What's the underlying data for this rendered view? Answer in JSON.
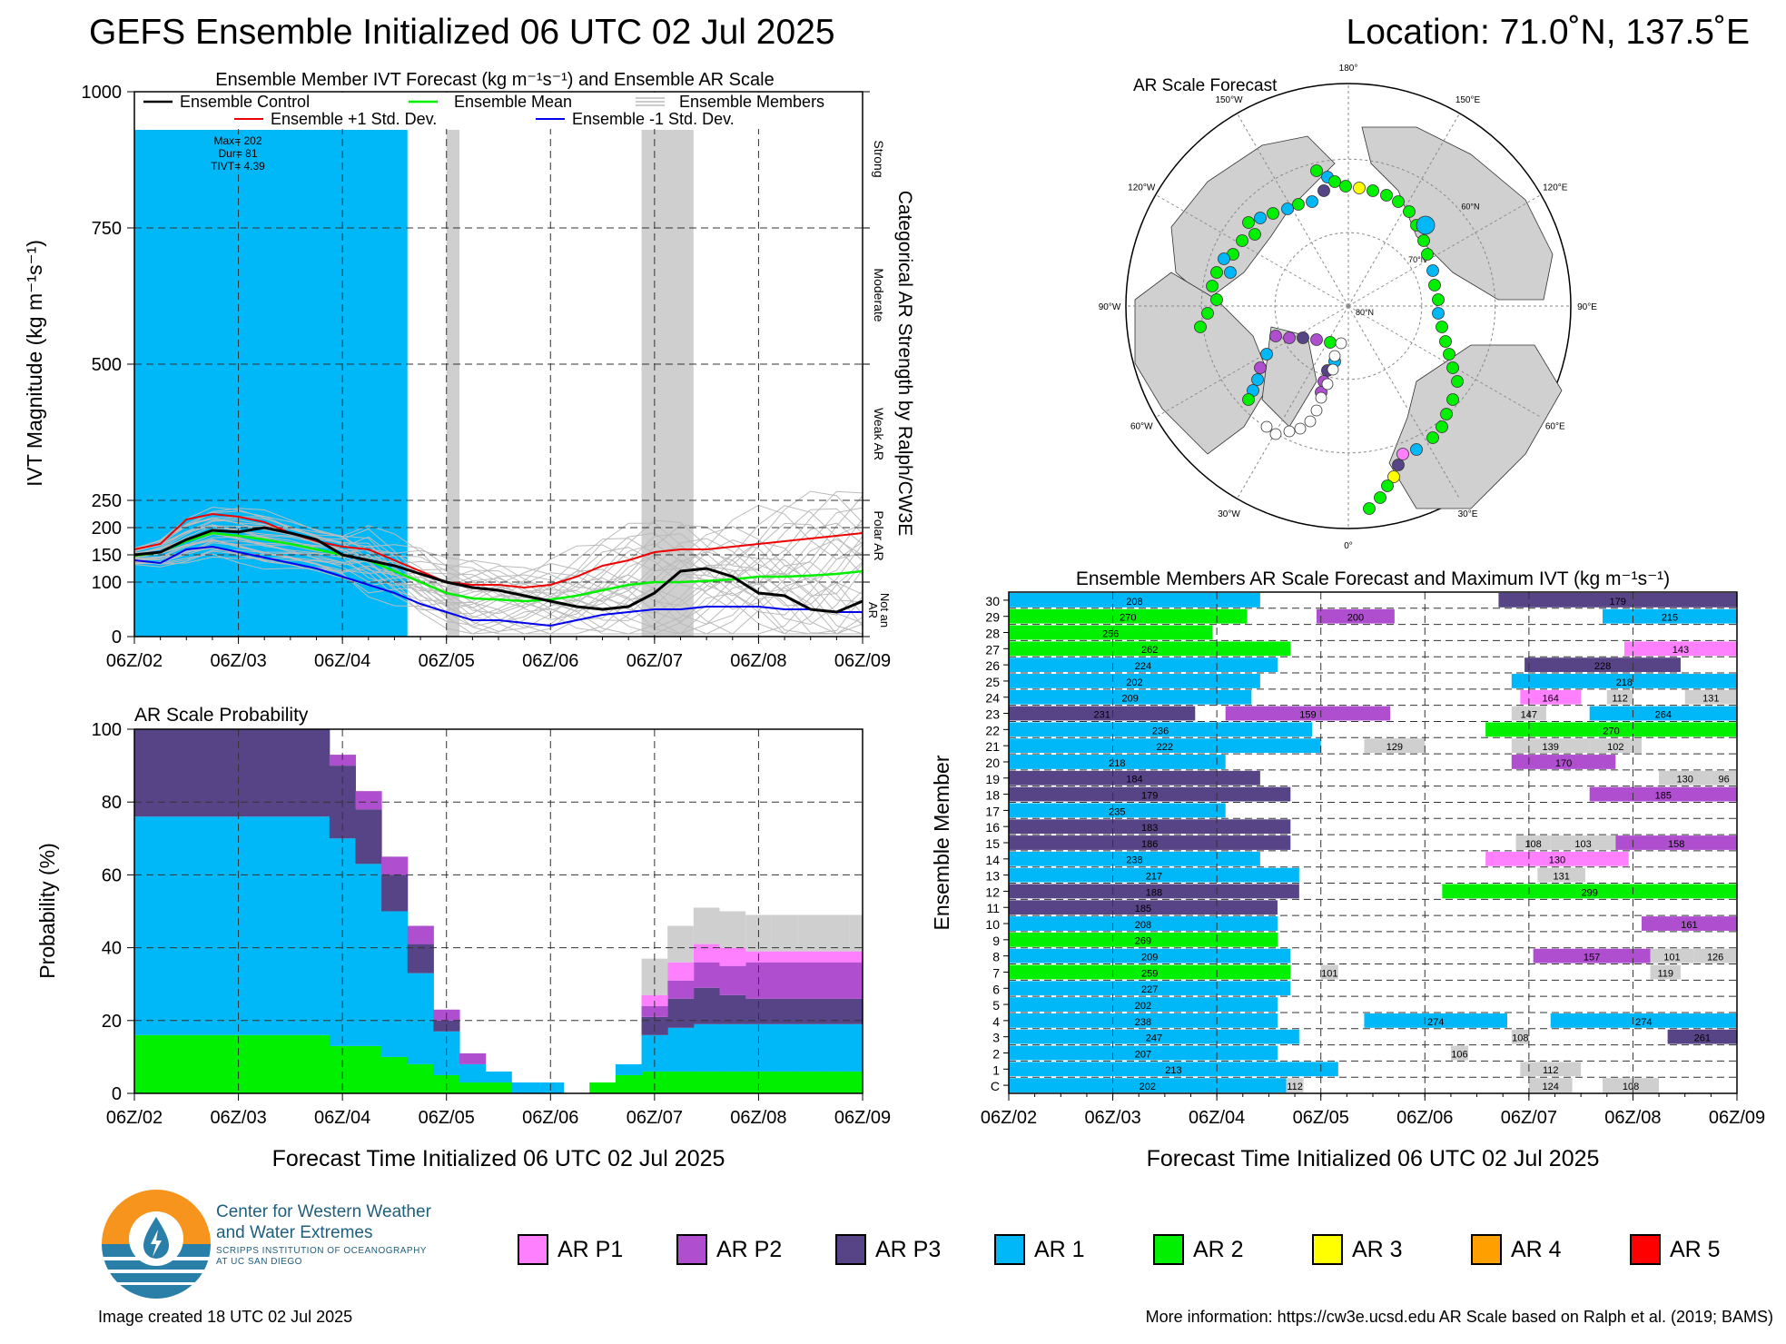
{
  "title": "GEFS Ensemble Initialized 06 UTC 02 Jul 2025",
  "location": "Location: 71.0˚N, 137.5˚E",
  "x_ticks": [
    "06Z/02",
    "06Z/03",
    "06Z/04",
    "06Z/05",
    "06Z/06",
    "06Z/07",
    "06Z/08",
    "06Z/09"
  ],
  "x_label": "Forecast Time Initialized 06 UTC 02 Jul 2025",
  "colors": {
    "AR P1": "#ff80ff",
    "AR P2": "#b04ed0",
    "AR P3": "#574486",
    "AR 1": "#00b8f8",
    "AR 2": "#00f000",
    "AR 3": "#ffff00",
    "AR 4": "#ffa000",
    "AR 5": "#ff0000",
    "members": "#bbbbbb",
    "shade": "#cfcfcf"
  },
  "ivt_panel": {
    "title": "Ensemble Member IVT Forecast (kg m⁻¹s⁻¹) and Ensemble AR Scale",
    "ylabel": "IVT Magnitude (kg m⁻¹s⁻¹)",
    "right_label": "Categorical AR Strength by Ralph/CW3E",
    "legend": {
      "control": "Ensemble Control",
      "mean": "Ensemble Mean",
      "members": "Ensemble Members",
      "plus": "Ensemble +1 Std. Dev.",
      "minus": "Ensemble -1 Std. Dev."
    },
    "annotation": [
      "Max= 202",
      "Dur= 81",
      "TIVT= 4.39"
    ],
    "categories": [
      "Strong",
      "Moderate",
      "Weak AR",
      "Polar AR",
      "Not an AR"
    ]
  },
  "prob_panel": {
    "title": "AR Scale Probability",
    "ylabel": "Probability (%)"
  },
  "map_panel": {
    "title": "AR Scale Forecast",
    "lon_labels": [
      "180°",
      "150°E",
      "120°E",
      "90°E",
      "60°E",
      "30°E",
      "0°",
      "30°W",
      "60°W",
      "90°W",
      "120°W",
      "150°W"
    ],
    "lat_labels": [
      "60°N",
      "70°N",
      "80°N"
    ]
  },
  "members_panel": {
    "title": "Ensemble Members AR Scale Forecast and Maximum IVT (kg m⁻¹s⁻¹)",
    "ylabel": "Ensemble Member",
    "rows": [
      "C",
      "1",
      "2",
      "3",
      "4",
      "5",
      "6",
      "7",
      "8",
      "9",
      "10",
      "11",
      "12",
      "13",
      "14",
      "15",
      "16",
      "17",
      "18",
      "19",
      "20",
      "21",
      "22",
      "23",
      "24",
      "25",
      "26",
      "27",
      "28",
      "29",
      "30"
    ]
  },
  "legend": {
    "items": [
      "AR P1",
      "AR P2",
      "AR P3",
      "AR 1",
      "AR 2",
      "AR 3",
      "AR 4",
      "AR 5"
    ]
  },
  "logo": {
    "line1": "Center for Western Weather",
    "line2": "and Water Extremes",
    "line3": "SCRIPPS INSTITUTION OF OCEANOGRAPHY",
    "line4": "AT UC SAN DIEGO"
  },
  "footer": {
    "created": "Image created 18 UTC 02 Jul 2025",
    "more": "More information: https://cw3e.ucsd.edu AR Scale based on Ralph et al. (2019; BAMS)"
  },
  "chart_data": [
    {
      "type": "line",
      "title": "Ensemble Member IVT Forecast (kg m⁻¹s⁻¹) and Ensemble AR Scale",
      "ylabel": "IVT Magnitude (kg m⁻¹s⁻¹)",
      "ylim": [
        0,
        1000
      ],
      "yticks": [
        0,
        100,
        150,
        200,
        250,
        500,
        750,
        1000
      ],
      "x_hours": [
        0,
        6,
        12,
        18,
        24,
        30,
        36,
        42,
        48,
        54,
        60,
        66,
        72,
        78,
        84,
        90,
        96,
        102,
        108,
        114,
        120,
        126,
        132,
        138,
        144,
        150,
        156,
        162,
        168
      ],
      "series": [
        {
          "name": "Ensemble Control",
          "values": [
            150,
            155,
            178,
            195,
            192,
            200,
            190,
            178,
            150,
            140,
            130,
            115,
            100,
            90,
            85,
            75,
            65,
            55,
            50,
            55,
            80,
            120,
            125,
            110,
            80,
            75,
            50,
            45,
            65
          ]
        },
        {
          "name": "Ensemble Mean",
          "values": [
            148,
            155,
            175,
            190,
            185,
            178,
            170,
            160,
            150,
            140,
            120,
            100,
            80,
            70,
            68,
            65,
            68,
            75,
            85,
            95,
            100,
            100,
            102,
            105,
            110,
            110,
            112,
            115,
            120
          ]
        },
        {
          "name": "Ensemble +1 Std. Dev.",
          "values": [
            160,
            170,
            215,
            225,
            220,
            210,
            190,
            175,
            165,
            160,
            140,
            120,
            100,
            95,
            95,
            90,
            95,
            110,
            130,
            140,
            155,
            160,
            160,
            165,
            170,
            175,
            180,
            185,
            190
          ]
        },
        {
          "name": "Ensemble -1 Std. Dev.",
          "values": [
            140,
            135,
            160,
            165,
            155,
            145,
            135,
            125,
            110,
            95,
            80,
            60,
            45,
            30,
            30,
            25,
            20,
            30,
            40,
            45,
            50,
            50,
            55,
            55,
            55,
            50,
            50,
            45,
            45
          ]
        }
      ],
      "ar_scale_bars": [
        {
          "category": "AR 1",
          "start_hour": 0,
          "end_hour": 63,
          "top": 930
        },
        {
          "category": "shade",
          "start_hour": 72,
          "end_hour": 75,
          "top": 930
        },
        {
          "category": "shade",
          "start_hour": 117,
          "end_hour": 129,
          "top": 930
        }
      ]
    },
    {
      "type": "area",
      "title": "AR Scale Probability",
      "ylabel": "Probability (%)",
      "ylim": [
        0,
        100
      ],
      "x_hours": [
        0,
        6,
        12,
        18,
        24,
        30,
        36,
        42,
        48,
        54,
        60,
        66,
        72,
        78,
        84,
        90,
        96,
        102,
        108,
        114,
        120,
        126,
        132,
        138,
        144,
        150,
        156,
        162,
        168
      ],
      "series": [
        {
          "name": "AR 2",
          "values": [
            16,
            16,
            16,
            16,
            16,
            16,
            16,
            16,
            13,
            13,
            10,
            8,
            5,
            3,
            3,
            0,
            0,
            0,
            3,
            5,
            6,
            6,
            6,
            6,
            6,
            6,
            6,
            6,
            6
          ]
        },
        {
          "name": "AR 1",
          "values": [
            60,
            60,
            60,
            60,
            60,
            60,
            60,
            60,
            57,
            50,
            40,
            25,
            12,
            5,
            3,
            3,
            3,
            0,
            0,
            3,
            10,
            12,
            13,
            13,
            13,
            13,
            13,
            13,
            13
          ]
        },
        {
          "name": "AR P3",
          "values": [
            24,
            24,
            24,
            24,
            24,
            24,
            24,
            24,
            20,
            15,
            10,
            8,
            3,
            0,
            0,
            0,
            0,
            0,
            0,
            0,
            5,
            8,
            10,
            8,
            7,
            7,
            7,
            7,
            7
          ]
        },
        {
          "name": "AR P2",
          "values": [
            0,
            0,
            0,
            0,
            0,
            0,
            0,
            0,
            3,
            5,
            5,
            5,
            3,
            3,
            0,
            0,
            0,
            0,
            0,
            0,
            3,
            5,
            7,
            8,
            10,
            10,
            10,
            10,
            10
          ]
        },
        {
          "name": "AR P1",
          "values": [
            0,
            0,
            0,
            0,
            0,
            0,
            0,
            0,
            0,
            0,
            0,
            0,
            0,
            0,
            0,
            0,
            0,
            0,
            0,
            0,
            3,
            5,
            5,
            5,
            3,
            3,
            3,
            3,
            3
          ]
        }
      ]
    },
    {
      "type": "heatmap",
      "title": "Ensemble Members AR Scale Forecast and Maximum IVT (kg m⁻¹s⁻¹)",
      "ylabel": "Ensemble Member",
      "xlim_hours": [
        0,
        168
      ],
      "members": [
        {
          "id": "C",
          "segments": [
            [
              "AR 1",
              0,
              64,
              "202"
            ],
            [
              "shade",
              64,
              68,
              "112"
            ],
            [
              "shade",
              120,
              130,
              "124"
            ],
            [
              "shade",
              137,
              150,
              "108"
            ]
          ]
        },
        {
          "id": "1",
          "segments": [
            [
              "AR 1",
              0,
              76,
              "213"
            ],
            [
              "shade",
              118,
              132,
              "112"
            ]
          ]
        },
        {
          "id": "2",
          "segments": [
            [
              "AR 1",
              0,
              62,
              "207"
            ],
            [
              "shade",
              102,
              106,
              "106"
            ]
          ]
        },
        {
          "id": "3",
          "segments": [
            [
              "AR 1",
              0,
              67,
              "247"
            ],
            [
              "shade",
              116,
              120,
              "108"
            ],
            [
              "AR P3",
              152,
              168,
              "261"
            ]
          ]
        },
        {
          "id": "4",
          "segments": [
            [
              "AR 1",
              0,
              62,
              "238"
            ],
            [
              "AR 1",
              82,
              115,
              "274"
            ],
            [
              "AR 1",
              125,
              168,
              "274"
            ]
          ]
        },
        {
          "id": "5",
          "segments": [
            [
              "AR 1",
              0,
              62,
              "202"
            ]
          ]
        },
        {
          "id": "6",
          "segments": [
            [
              "AR 1",
              0,
              65,
              "227"
            ]
          ]
        },
        {
          "id": "7",
          "segments": [
            [
              "AR 2",
              0,
              65,
              "259"
            ],
            [
              "shade",
              72,
              76,
              "101"
            ],
            [
              "shade",
              148,
              155,
              "119"
            ]
          ]
        },
        {
          "id": "8",
          "segments": [
            [
              "AR 1",
              0,
              65,
              "209"
            ],
            [
              "AR P2",
              121,
              148,
              "157"
            ],
            [
              "shade",
              148,
              158,
              "101"
            ],
            [
              "shade",
              158,
              168,
              "126"
            ]
          ]
        },
        {
          "id": "9",
          "segments": [
            [
              "AR 2",
              0,
              62,
              "269"
            ]
          ]
        },
        {
          "id": "10",
          "segments": [
            [
              "AR 1",
              0,
              62,
              "208"
            ],
            [
              "AR P2",
              146,
              168,
              "161"
            ]
          ]
        },
        {
          "id": "11",
          "segments": [
            [
              "AR P3",
              0,
              62,
              "185"
            ]
          ]
        },
        {
          "id": "12",
          "segments": [
            [
              "AR P3",
              0,
              67,
              "188"
            ],
            [
              "AR 2",
              100,
              168,
              "299"
            ]
          ]
        },
        {
          "id": "13",
          "segments": [
            [
              "AR 1",
              0,
              67,
              "217"
            ],
            [
              "shade",
              122,
              133,
              "131"
            ]
          ]
        },
        {
          "id": "14",
          "segments": [
            [
              "AR 1",
              0,
              58,
              "238"
            ],
            [
              "AR P1",
              110,
              143,
              "130"
            ]
          ]
        },
        {
          "id": "15",
          "segments": [
            [
              "AR P3",
              0,
              65,
              "186"
            ],
            [
              "shade",
              117,
              125,
              "108"
            ],
            [
              "shade",
              125,
              140,
              "103"
            ],
            [
              "AR P2",
              140,
              168,
              "158"
            ]
          ]
        },
        {
          "id": "16",
          "segments": [
            [
              "AR P3",
              0,
              65,
              "183"
            ]
          ]
        },
        {
          "id": "17",
          "segments": [
            [
              "AR 1",
              0,
              50,
              "235"
            ]
          ]
        },
        {
          "id": "18",
          "segments": [
            [
              "AR P3",
              0,
              65,
              "179"
            ],
            [
              "AR P2",
              134,
              168,
              "185"
            ]
          ]
        },
        {
          "id": "19",
          "segments": [
            [
              "AR P3",
              0,
              58,
              "184"
            ],
            [
              "shade",
              150,
              162,
              "130"
            ],
            [
              "shade",
              162,
              168,
              "96"
            ]
          ]
        },
        {
          "id": "20",
          "segments": [
            [
              "AR 1",
              0,
              50,
              "218"
            ],
            [
              "AR P2",
              116,
              140,
              "170"
            ]
          ]
        },
        {
          "id": "21",
          "segments": [
            [
              "AR 1",
              0,
              72,
              "222"
            ],
            [
              "shade",
              82,
              96,
              "129"
            ],
            [
              "shade",
              116,
              134,
              "139"
            ],
            [
              "shade",
              134,
              146,
              "102"
            ]
          ]
        },
        {
          "id": "22",
          "segments": [
            [
              "AR 1",
              0,
              70,
              "236"
            ],
            [
              "AR 2",
              110,
              168,
              "270"
            ]
          ]
        },
        {
          "id": "23",
          "segments": [
            [
              "AR P3",
              0,
              43,
              "231"
            ],
            [
              "AR P2",
              50,
              88,
              "159"
            ],
            [
              "shade",
              116,
              124,
              "147"
            ],
            [
              "AR 1",
              134,
              168,
              "264"
            ]
          ]
        },
        {
          "id": "24",
          "segments": [
            [
              "AR 1",
              0,
              56,
              "209"
            ],
            [
              "AR P1",
              118,
              132,
              "164"
            ],
            [
              "shade",
              138,
              144,
              "112"
            ],
            [
              "shade",
              156,
              168,
              "131"
            ]
          ]
        },
        {
          "id": "25",
          "segments": [
            [
              "AR 1",
              0,
              58,
              "202"
            ],
            [
              "AR 1",
              116,
              168,
              "218"
            ]
          ]
        },
        {
          "id": "26",
          "segments": [
            [
              "AR 1",
              0,
              62,
              "224"
            ],
            [
              "AR P3",
              119,
              155,
              "228"
            ]
          ]
        },
        {
          "id": "27",
          "segments": [
            [
              "AR 2",
              0,
              65,
              "262"
            ],
            [
              "AR P1",
              142,
              168,
              "143"
            ]
          ]
        },
        {
          "id": "28",
          "segments": [
            [
              "AR 2",
              0,
              47,
              "256"
            ]
          ]
        },
        {
          "id": "29",
          "segments": [
            [
              "AR 2",
              0,
              55,
              "270"
            ],
            [
              "AR P2",
              71,
              89,
              "200"
            ],
            [
              "AR 1",
              137,
              168,
              "215"
            ]
          ]
        },
        {
          "id": "30",
          "segments": [
            [
              "AR 1",
              0,
              58,
              "208"
            ],
            [
              "AR P3",
              113,
              168,
              "179"
            ]
          ]
        }
      ]
    }
  ]
}
